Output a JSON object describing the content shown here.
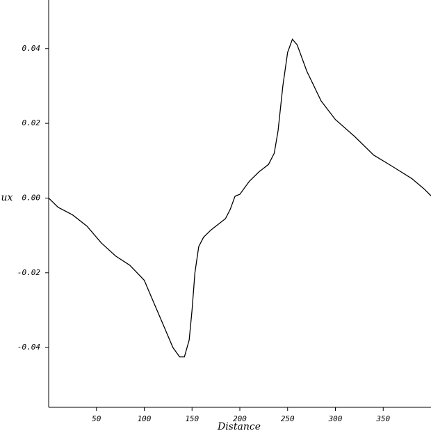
{
  "chart_data": {
    "type": "line",
    "x_label": "Distance",
    "y_label": "ux",
    "x": [
      0,
      10,
      25,
      40,
      55,
      70,
      85,
      100,
      110,
      120,
      130,
      137,
      142,
      147,
      150,
      153,
      157,
      162,
      170,
      180,
      185,
      190,
      195,
      200,
      210,
      220,
      230,
      236,
      240,
      245,
      250,
      255,
      260,
      270,
      285,
      300,
      320,
      340,
      360,
      380,
      386,
      393,
      400
    ],
    "series": [
      {
        "name": "ux",
        "color": "#000000",
        "values": [
          0,
          -0.0025,
          -0.0045,
          -0.0075,
          -0.012,
          -0.0155,
          -0.018,
          -0.022,
          -0.028,
          -0.034,
          -0.04,
          -0.0425,
          -0.0425,
          -0.038,
          -0.03,
          -0.02,
          -0.013,
          -0.0105,
          -0.0085,
          -0.0065,
          -0.0055,
          -0.003,
          0.0005,
          0.001,
          0.0045,
          0.007,
          0.009,
          0.012,
          0.018,
          0.03,
          0.039,
          0.0425,
          0.041,
          0.034,
          0.026,
          0.021,
          0.0165,
          0.0115,
          0.0084,
          0.0052,
          0.0039,
          0.0024,
          0.0006
        ]
      }
    ],
    "xlim": [
      0,
      400
    ],
    "ylim": [
      -0.056,
      0.053
    ],
    "xticks": [
      50,
      100,
      150,
      200,
      250,
      300,
      350
    ],
    "yticks": [
      -0.04,
      -0.02,
      {
        "value": 0,
        "label": "0.00"
      },
      0.02,
      0.04
    ]
  }
}
